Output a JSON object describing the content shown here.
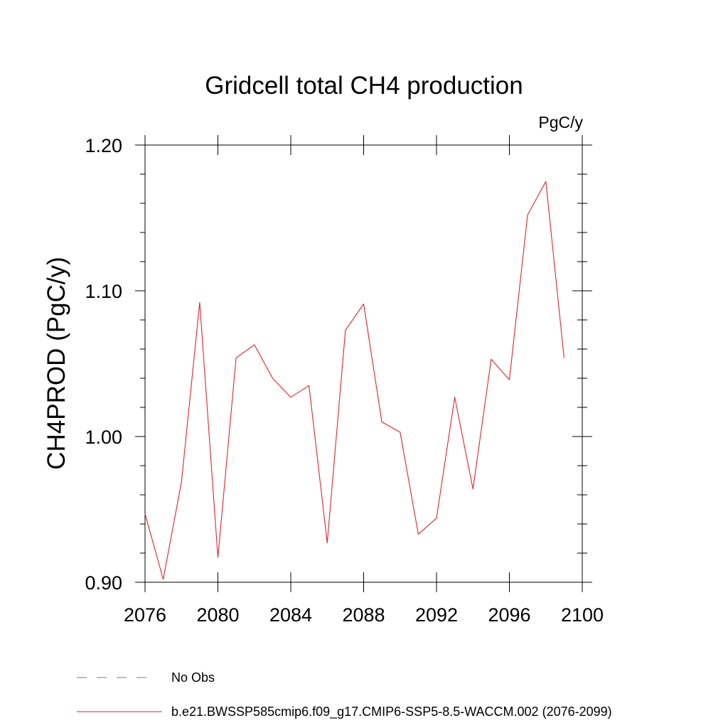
{
  "chart_data": {
    "type": "line",
    "title": "Gridcell total CH4 production",
    "units": "PgC/y",
    "ylabel": "CH4PROD  (PgC/y)",
    "xlabel": "",
    "xlim": [
      2076,
      2100
    ],
    "ylim": [
      0.9,
      1.2
    ],
    "x_ticks": [
      2076,
      2080,
      2084,
      2088,
      2092,
      2096,
      2100
    ],
    "x_tick_labels": [
      "2076",
      "2080",
      "2084",
      "2088",
      "2092",
      "2096",
      "2100"
    ],
    "y_ticks": [
      0.9,
      1.0,
      1.1,
      1.2
    ],
    "y_tick_labels": [
      "0.90",
      "1.00",
      "1.10",
      "1.20"
    ],
    "grid": false,
    "legend_position": "bottom",
    "series": [
      {
        "name": "b.e21.BWSSP585cmip6.f09_g17.CMIP6-SSP5-8.5-WACCM.002 (2076-2099)",
        "color": "#e8202a",
        "dash": "solid",
        "x": [
          2076,
          2077,
          2078,
          2079,
          2080,
          2081,
          2082,
          2083,
          2084,
          2085,
          2086,
          2087,
          2088,
          2089,
          2090,
          2091,
          2092,
          2093,
          2094,
          2095,
          2096,
          2097,
          2098,
          2099
        ],
        "y": [
          0.947,
          0.902,
          0.969,
          1.092,
          0.917,
          1.054,
          1.063,
          1.04,
          1.027,
          1.035,
          0.927,
          1.073,
          1.091,
          1.01,
          1.003,
          0.933,
          0.944,
          1.027,
          0.964,
          1.053,
          1.039,
          1.152,
          1.175,
          1.054
        ]
      }
    ],
    "legend": [
      {
        "label": "No Obs",
        "color": "#7f6fb0",
        "dash": "dashed"
      },
      {
        "label": "b.e21.BWSSP585cmip6.f09_g17.CMIP6-SSP5-8.5-WACCM.002 (2076-2099)",
        "color": "#e8202a",
        "dash": "solid"
      }
    ]
  }
}
